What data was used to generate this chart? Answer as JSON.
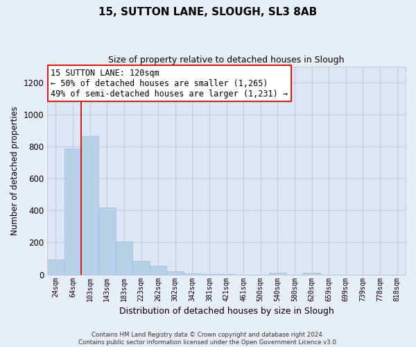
{
  "title1": "15, SUTTON LANE, SLOUGH, SL3 8AB",
  "title2": "Size of property relative to detached houses in Slough",
  "xlabel": "Distribution of detached houses by size in Slough",
  "ylabel": "Number of detached properties",
  "bar_labels": [
    "24sqm",
    "64sqm",
    "103sqm",
    "143sqm",
    "183sqm",
    "223sqm",
    "262sqm",
    "302sqm",
    "342sqm",
    "381sqm",
    "421sqm",
    "461sqm",
    "500sqm",
    "540sqm",
    "580sqm",
    "620sqm",
    "659sqm",
    "699sqm",
    "739sqm",
    "778sqm",
    "818sqm"
  ],
  "bar_values": [
    95,
    785,
    865,
    420,
    205,
    85,
    53,
    22,
    8,
    3,
    1,
    0,
    0,
    10,
    0,
    10,
    0,
    0,
    0,
    0,
    0
  ],
  "bar_color": "#b8d0e8",
  "bar_edge_color": "#a0bcd8",
  "vline_color": "#cc2222",
  "vline_bar_index": 2,
  "ylim": [
    0,
    1300
  ],
  "yticks": [
    0,
    200,
    400,
    600,
    800,
    1000,
    1200
  ],
  "annotation_title": "15 SUTTON LANE: 120sqm",
  "annotation_line1": "← 50% of detached houses are smaller (1,265)",
  "annotation_line2": "49% of semi-detached houses are larger (1,231) →",
  "annotation_box_color": "#ffffff",
  "annotation_box_edgecolor": "#cc2222",
  "footer1": "Contains HM Land Registry data © Crown copyright and database right 2024.",
  "footer2": "Contains public sector information licensed under the Open Government Licence v3.0.",
  "bg_color": "#e8eef8",
  "plot_bg_color": "#dce6f5",
  "grid_color": "#c0cce0"
}
